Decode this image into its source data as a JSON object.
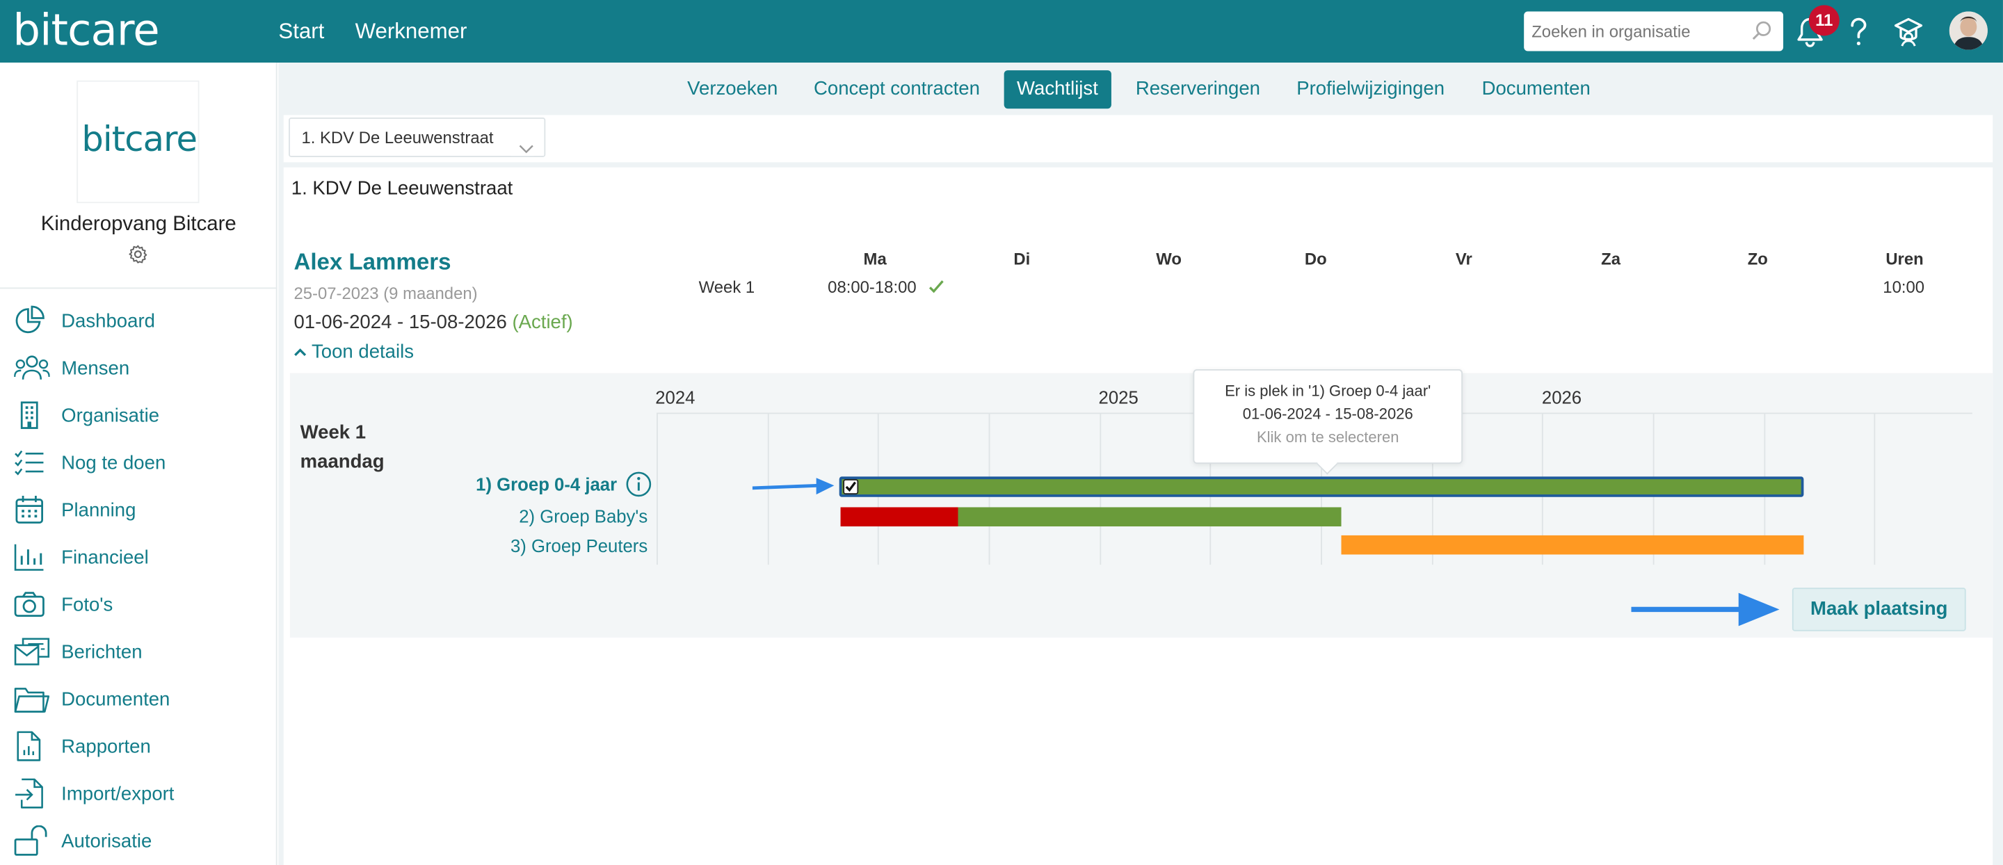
{
  "app": {
    "logo": "bitcare",
    "nav": [
      "Start",
      "Werknemer"
    ],
    "search_placeholder": "Zoeken in organisatie",
    "notification_count": "11",
    "accent_color": "#137c89"
  },
  "sidebar": {
    "org_logo": "bitcare",
    "org_name": "Kinderopvang Bitcare",
    "items": [
      {
        "label": "Dashboard",
        "icon": "pie-chart-icon"
      },
      {
        "label": "Mensen",
        "icon": "people-icon"
      },
      {
        "label": "Organisatie",
        "icon": "building-icon"
      },
      {
        "label": "Nog te doen",
        "icon": "checklist-icon"
      },
      {
        "label": "Planning",
        "icon": "calendar-icon"
      },
      {
        "label": "Financieel",
        "icon": "bar-chart-icon"
      },
      {
        "label": "Foto's",
        "icon": "camera-icon"
      },
      {
        "label": "Berichten",
        "icon": "messages-icon"
      },
      {
        "label": "Documenten",
        "icon": "folder-icon"
      },
      {
        "label": "Rapporten",
        "icon": "report-icon"
      },
      {
        "label": "Import/export",
        "icon": "import-export-icon"
      },
      {
        "label": "Autorisatie",
        "icon": "unlock-icon"
      }
    ]
  },
  "tabs": [
    {
      "label": "Verzoeken",
      "active": false
    },
    {
      "label": "Concept contracten",
      "active": false
    },
    {
      "label": "Wachtlijst",
      "active": true
    },
    {
      "label": "Reserveringen",
      "active": false
    },
    {
      "label": "Profielwijzigingen",
      "active": false
    },
    {
      "label": "Documenten",
      "active": false
    }
  ],
  "location_select": "1. KDV De Leeuwenstraat",
  "location_title": "1. KDV De Leeuwenstraat",
  "child": {
    "name": "Alex Lammers",
    "dob": "25-07-2023 (9 maanden)",
    "period": "01-06-2024 - 15-08-2026",
    "status": "(Actief)",
    "toggle_label": "Toon details"
  },
  "schedule": {
    "week_label": "Week 1",
    "days": [
      "Ma",
      "Di",
      "Wo",
      "Do",
      "Vr",
      "Za",
      "Zo"
    ],
    "hours_header": "Uren",
    "monday": "08:00-18:00",
    "hours": "10:00"
  },
  "timeline": {
    "years": [
      "2024",
      "2025",
      "2026"
    ],
    "row_title_1": "Week 1",
    "row_title_2": "maandag",
    "groups": [
      {
        "label": "1) Groep 0-4 jaar",
        "selected": true
      },
      {
        "label": "2) Groep Baby's",
        "selected": false
      },
      {
        "label": "3) Groep Peuters",
        "selected": false
      }
    ],
    "tooltip": {
      "line1": "Er is plek in '1) Groep 0-4 jaar'",
      "line2": "01-06-2024 - 15-08-2026",
      "line3": "Klik om te selecteren"
    },
    "colors": {
      "available": "#6a9b3a",
      "full": "#cc0000",
      "partial": "#ff9922",
      "arrow": "#2e86e6"
    }
  },
  "action": {
    "place_button": "Maak plaatsing"
  }
}
